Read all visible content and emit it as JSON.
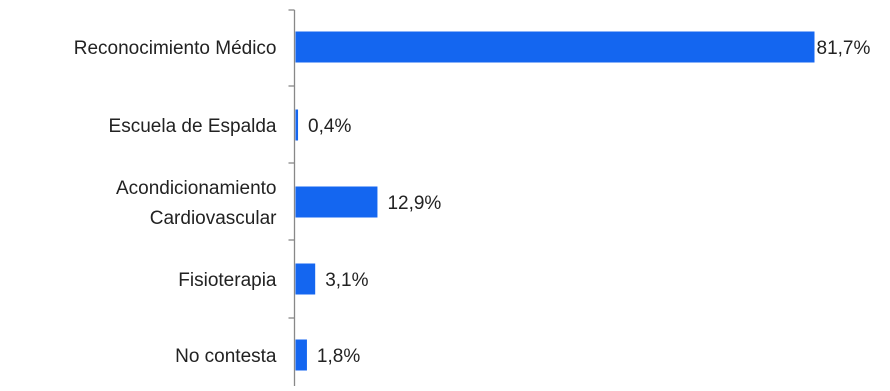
{
  "chart_data": {
    "type": "bar",
    "orientation": "horizontal",
    "categories": [
      [
        "Reconocimiento Médico"
      ],
      [
        "Escuela de Espalda"
      ],
      [
        "Acondicionamiento",
        "Cardiovascular"
      ],
      [
        "Fisioterapia"
      ],
      [
        "No contesta"
      ]
    ],
    "values": [
      81.7,
      0.4,
      12.9,
      3.1,
      1.8
    ],
    "value_labels": [
      "81,7%",
      "0,4%",
      "12,9%",
      "3,1%",
      "1,8%"
    ],
    "bar_color": "#1466f0",
    "axis_color": "#888888",
    "title": "",
    "xlabel": "",
    "ylabel": "",
    "xlim": [
      0,
      81.7
    ],
    "grid": false,
    "legend": "none"
  }
}
